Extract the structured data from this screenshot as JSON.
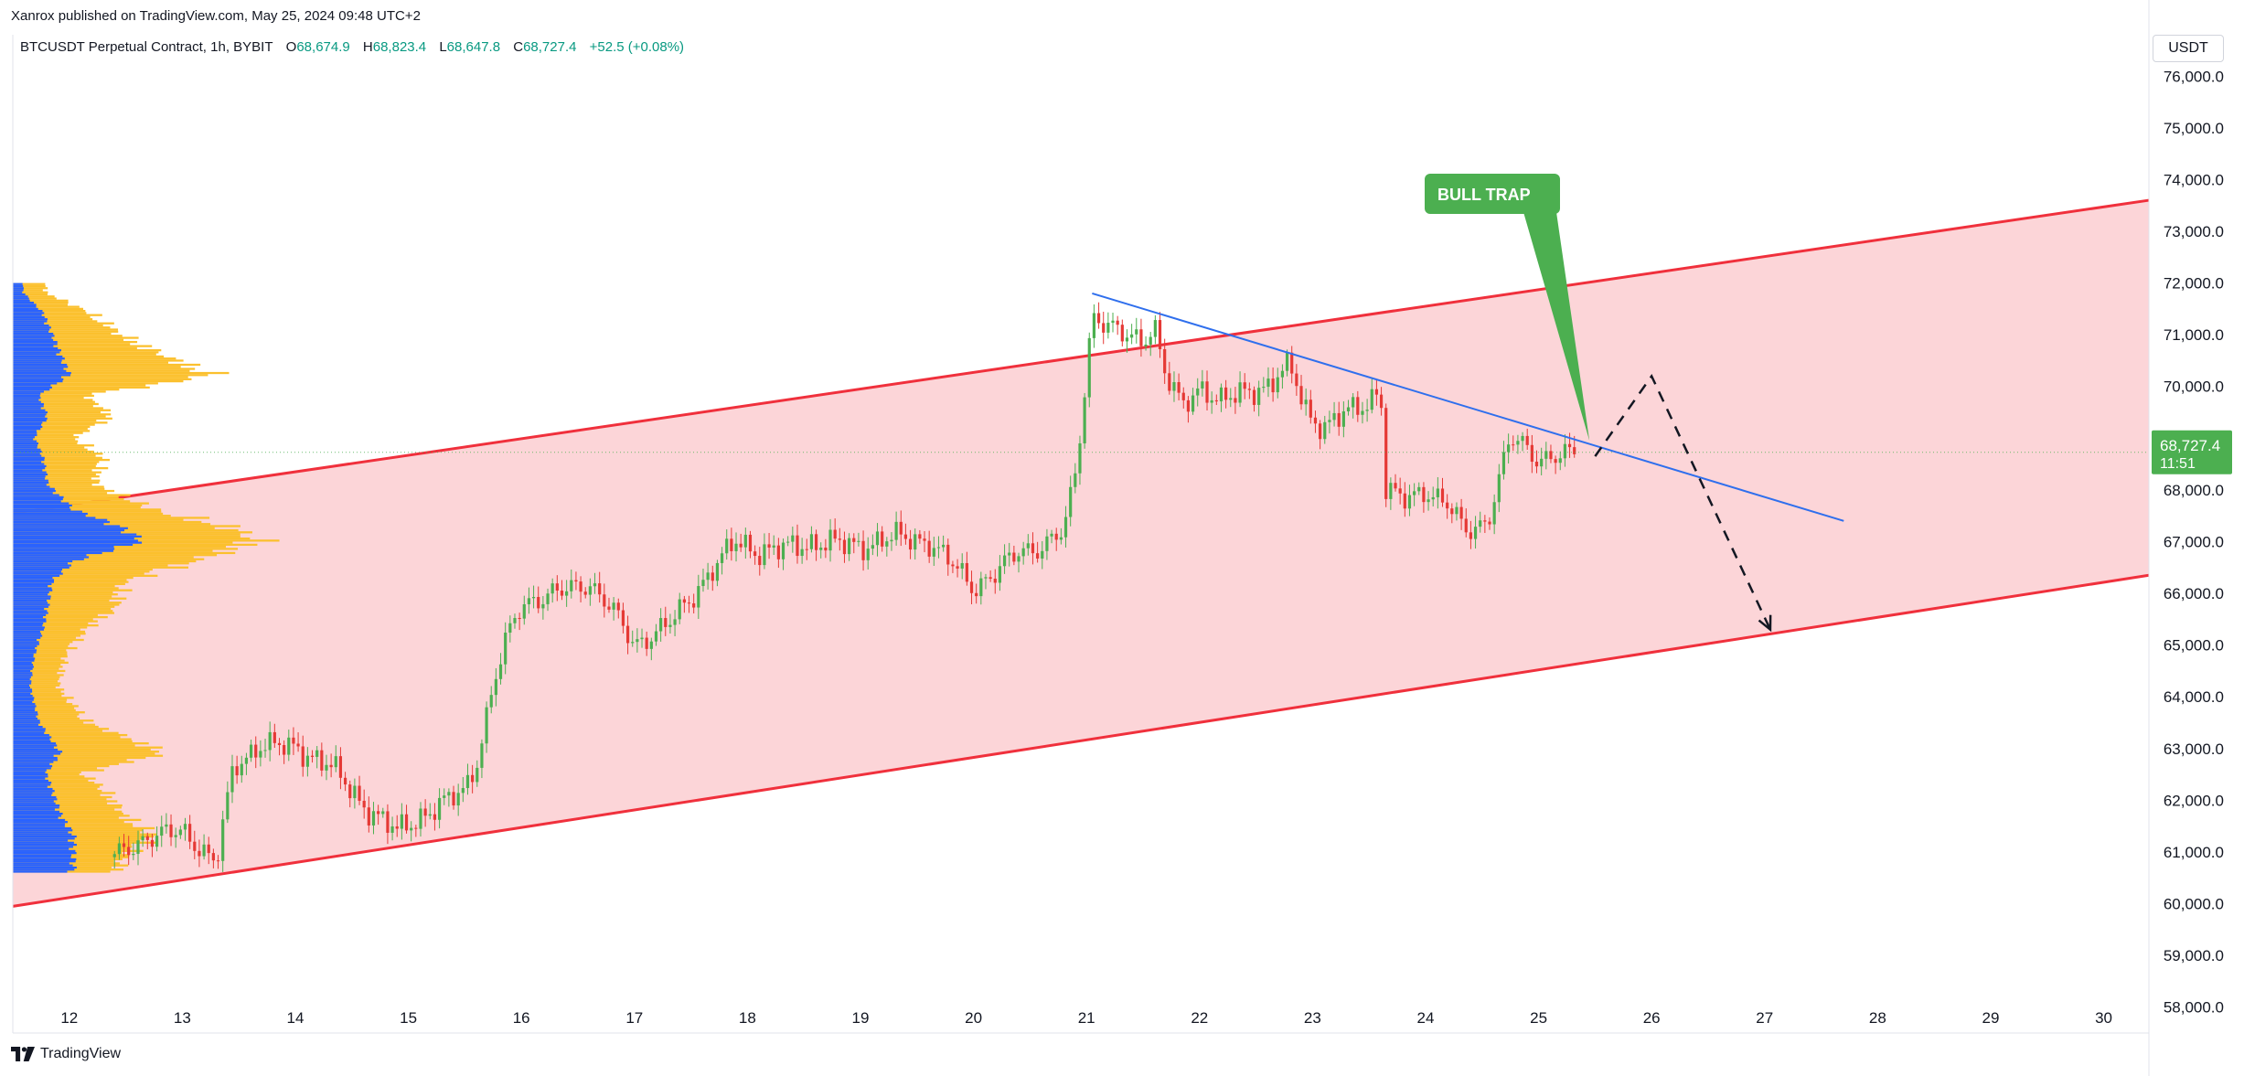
{
  "publisher": {
    "text": "Xanrox published on TradingView.com, May 25, 2024 09:48 UTC+2"
  },
  "symbol": {
    "title": "BTCUSDT Perpetual Contract, 1h, BYBIT",
    "open_label": "O",
    "open": "68,674.9",
    "high_label": "H",
    "high": "68,823.4",
    "low_label": "L",
    "low": "68,647.8",
    "close_label": "C",
    "close": "68,727.4",
    "change": "+52.5 (+0.08%)"
  },
  "currency": "USDT",
  "price_badge": {
    "price": "68,727.4",
    "countdown": "11:51",
    "color": "#4caf50"
  },
  "annotation": {
    "text": "BULL TRAP",
    "color": "#4caf50"
  },
  "brand": {
    "name": "TradingView",
    "icon": "tradingview-logo-icon"
  },
  "colors": {
    "up": "#4caf50",
    "down": "#e53935",
    "channel_fill": "#fcd5d8",
    "channel_line": "#f0303c",
    "trendline": "#2f6fed",
    "profile_blue": "#2962ff",
    "profile_yellow": "#fbc02d"
  },
  "chart_data": {
    "type": "candlestick",
    "title": "BTCUSDT Perpetual Contract, 1h, BYBIT",
    "y_axis": {
      "min": 57500,
      "max": 76800,
      "ticks": [
        "58,000.0",
        "59,000.0",
        "60,000.0",
        "61,000.0",
        "62,000.0",
        "63,000.0",
        "64,000.0",
        "65,000.0",
        "66,000.0",
        "67,000.0",
        "68,000.0",
        "69,000.0",
        "70,000.0",
        "71,000.0",
        "72,000.0",
        "73,000.0",
        "74,000.0",
        "75,000.0",
        "76,000.0"
      ],
      "tick_values": [
        58000,
        59000,
        60000,
        61000,
        62000,
        63000,
        64000,
        65000,
        66000,
        67000,
        68000,
        69000,
        70000,
        71000,
        72000,
        73000,
        74000,
        75000,
        76000
      ]
    },
    "x_axis": {
      "min": 11.5,
      "max": 30.4,
      "ticks": [
        "12",
        "13",
        "14",
        "15",
        "16",
        "17",
        "18",
        "19",
        "20",
        "21",
        "22",
        "23",
        "24",
        "25",
        "26",
        "27",
        "28",
        "29",
        "30"
      ],
      "tick_values": [
        12,
        13,
        14,
        15,
        16,
        17,
        18,
        19,
        20,
        21,
        22,
        23,
        24,
        25,
        26,
        27,
        28,
        29,
        30
      ]
    },
    "current_price": 68727.4,
    "price_path": [
      [
        12.4,
        60900
      ],
      [
        12.7,
        61300
      ],
      [
        13.0,
        61400
      ],
      [
        13.3,
        60800
      ],
      [
        13.45,
        62600
      ],
      [
        13.7,
        63100
      ],
      [
        14.0,
        63000
      ],
      [
        14.3,
        62700
      ],
      [
        14.6,
        61900
      ],
      [
        14.9,
        61400
      ],
      [
        15.2,
        61800
      ],
      [
        15.5,
        62200
      ],
      [
        15.6,
        62700
      ],
      [
        15.75,
        64200
      ],
      [
        15.85,
        65000
      ],
      [
        16.0,
        65800
      ],
      [
        16.3,
        66000
      ],
      [
        16.6,
        66200
      ],
      [
        16.8,
        65700
      ],
      [
        17.0,
        65000
      ],
      [
        17.3,
        65400
      ],
      [
        17.5,
        65900
      ],
      [
        17.7,
        66500
      ],
      [
        17.9,
        67000
      ],
      [
        18.1,
        66800
      ],
      [
        18.4,
        66900
      ],
      [
        18.7,
        67000
      ],
      [
        19.0,
        66900
      ],
      [
        19.3,
        67100
      ],
      [
        19.6,
        67000
      ],
      [
        19.8,
        66600
      ],
      [
        20.0,
        66100
      ],
      [
        20.2,
        66400
      ],
      [
        20.4,
        66800
      ],
      [
        20.6,
        66900
      ],
      [
        20.8,
        67200
      ],
      [
        20.9,
        68300
      ],
      [
        20.95,
        69200
      ],
      [
        21.05,
        71400
      ],
      [
        21.3,
        71000
      ],
      [
        21.5,
        70900
      ],
      [
        21.6,
        71200
      ],
      [
        21.7,
        70200
      ],
      [
        21.85,
        69600
      ],
      [
        22.0,
        70000
      ],
      [
        22.2,
        69700
      ],
      [
        22.4,
        69900
      ],
      [
        22.6,
        70000
      ],
      [
        22.8,
        70400
      ],
      [
        22.95,
        69500
      ],
      [
        23.1,
        69200
      ],
      [
        23.3,
        69500
      ],
      [
        23.5,
        69700
      ],
      [
        23.6,
        70000
      ],
      [
        23.65,
        68000
      ],
      [
        23.8,
        67800
      ],
      [
        24.0,
        68000
      ],
      [
        24.2,
        67700
      ],
      [
        24.35,
        67200
      ],
      [
        24.55,
        67400
      ],
      [
        24.65,
        68200
      ],
      [
        24.75,
        69000
      ],
      [
        24.85,
        68900
      ],
      [
        25.0,
        68600
      ],
      [
        25.2,
        68650
      ],
      [
        25.35,
        68727
      ]
    ],
    "volume_profile": {
      "levels": [
        60800,
        61300,
        61700,
        62200,
        62500,
        62900,
        63500,
        64200,
        64800,
        65300,
        65700,
        66200,
        66600,
        67000,
        67300,
        67600,
        68100,
        68600,
        69000,
        69400,
        69800,
        70200,
        70600,
        71000,
        71400,
        71800
      ],
      "total": [
        130,
        170,
        135,
        110,
        85,
        185,
        90,
        55,
        65,
        90,
        125,
        135,
        220,
        300,
        255,
        170,
        100,
        110,
        75,
        120,
        90,
        245,
        180,
        130,
        95,
        40
      ],
      "blue": [
        70,
        70,
        55,
        45,
        38,
        55,
        30,
        20,
        25,
        35,
        40,
        45,
        70,
        150,
        120,
        70,
        40,
        35,
        25,
        40,
        30,
        65,
        55,
        45,
        35,
        12
      ]
    },
    "channel": {
      "upper": [
        [
          11.5,
          67550
        ],
        [
          30.4,
          73600
        ]
      ],
      "lower": [
        [
          11.5,
          59950
        ],
        [
          30.4,
          66350
        ]
      ]
    },
    "trendline": [
      [
        21.05,
        71800
      ],
      [
        27.7,
        67400
      ]
    ],
    "projection": [
      [
        25.5,
        68650
      ],
      [
        26.0,
        70200
      ],
      [
        27.05,
        65300
      ]
    ],
    "annotation_point": [
      25.45,
      68950
    ]
  }
}
